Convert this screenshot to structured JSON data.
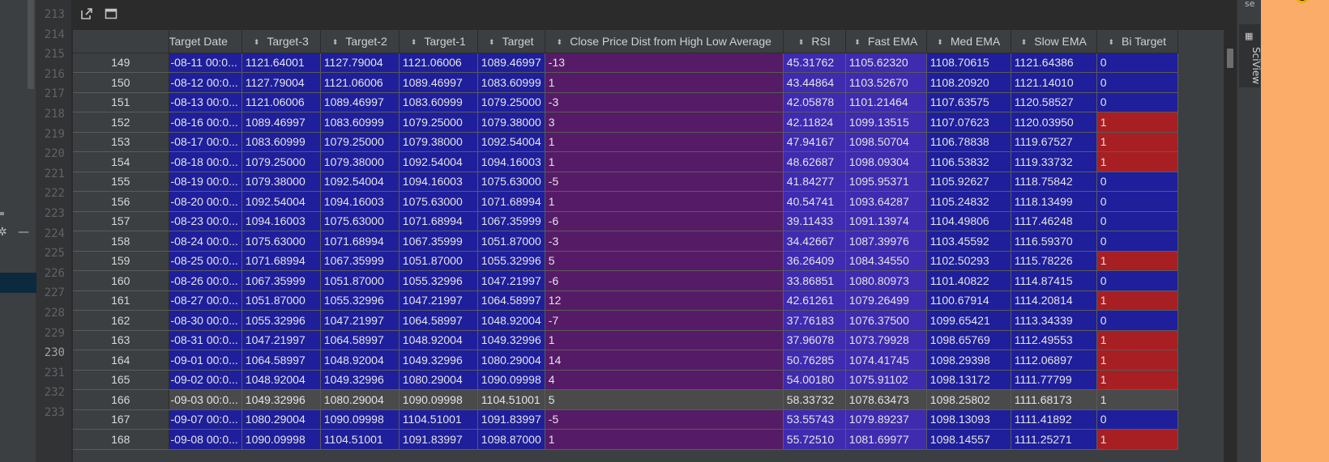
{
  "line_numbers": [
    "213",
    "214",
    "215",
    "216",
    "217",
    "218",
    "219",
    "220",
    "221",
    "222",
    "223",
    "224",
    "225",
    "226",
    "227",
    "228",
    "229",
    "230",
    "231",
    "232",
    "233"
  ],
  "current_line": "230",
  "toolbar": {
    "open_icon": "open-in-window-icon",
    "window_icon": "window-icon"
  },
  "right_strip": {
    "top_text": "se",
    "tool_label": "SciView",
    "tool_icon": "table-grid-icon"
  },
  "left_panel": {
    "icons": [
      "gear-icon",
      "minus-icon"
    ]
  },
  "colors": {
    "blue": "#1f1f9b",
    "purple": "#561b67",
    "lavender": "#3e2bb0",
    "red": "#a81f23"
  },
  "table": {
    "columns": [
      "Target Date",
      "Target-3",
      "Target-2",
      "Target-1",
      "Target",
      "Close Price Dist from High Low Average",
      "RSI",
      "Fast EMA",
      "Med EMA",
      "Slow EMA",
      "Bi Target"
    ],
    "rows": [
      {
        "idx": "149",
        "date": "-08-11 00:0...",
        "t3": "1121.64001",
        "t2": "1127.79004",
        "t1": "1121.06006",
        "t": "1089.46997",
        "dist": "-13",
        "rsi": "45.31762",
        "fast": "1105.62320",
        "med": "1108.70615",
        "slow": "1121.64386",
        "bi": "0"
      },
      {
        "idx": "150",
        "date": "-08-12 00:0...",
        "t3": "1127.79004",
        "t2": "1121.06006",
        "t1": "1089.46997",
        "t": "1083.60999",
        "dist": "1",
        "rsi": "43.44864",
        "fast": "1103.52670",
        "med": "1108.20920",
        "slow": "1121.14010",
        "bi": "0"
      },
      {
        "idx": "151",
        "date": "-08-13 00:0...",
        "t3": "1121.06006",
        "t2": "1089.46997",
        "t1": "1083.60999",
        "t": "1079.25000",
        "dist": "-3",
        "rsi": "42.05878",
        "fast": "1101.21464",
        "med": "1107.63575",
        "slow": "1120.58527",
        "bi": "0"
      },
      {
        "idx": "152",
        "date": "-08-16 00:0...",
        "t3": "1089.46997",
        "t2": "1083.60999",
        "t1": "1079.25000",
        "t": "1079.38000",
        "dist": "3",
        "rsi": "42.11824",
        "fast": "1099.13515",
        "med": "1107.07623",
        "slow": "1120.03950",
        "bi": "1"
      },
      {
        "idx": "153",
        "date": "-08-17 00:0...",
        "t3": "1083.60999",
        "t2": "1079.25000",
        "t1": "1079.38000",
        "t": "1092.54004",
        "dist": "1",
        "rsi": "47.94167",
        "fast": "1098.50704",
        "med": "1106.78838",
        "slow": "1119.67527",
        "bi": "1"
      },
      {
        "idx": "154",
        "date": "-08-18 00:0...",
        "t3": "1079.25000",
        "t2": "1079.38000",
        "t1": "1092.54004",
        "t": "1094.16003",
        "dist": "1",
        "rsi": "48.62687",
        "fast": "1098.09304",
        "med": "1106.53832",
        "slow": "1119.33732",
        "bi": "1"
      },
      {
        "idx": "155",
        "date": "-08-19 00:0...",
        "t3": "1079.38000",
        "t2": "1092.54004",
        "t1": "1094.16003",
        "t": "1075.63000",
        "dist": "-5",
        "rsi": "41.84277",
        "fast": "1095.95371",
        "med": "1105.92627",
        "slow": "1118.75842",
        "bi": "0"
      },
      {
        "idx": "156",
        "date": "-08-20 00:0...",
        "t3": "1092.54004",
        "t2": "1094.16003",
        "t1": "1075.63000",
        "t": "1071.68994",
        "dist": "1",
        "rsi": "40.54741",
        "fast": "1093.64287",
        "med": "1105.24832",
        "slow": "1118.13499",
        "bi": "0"
      },
      {
        "idx": "157",
        "date": "-08-23 00:0...",
        "t3": "1094.16003",
        "t2": "1075.63000",
        "t1": "1071.68994",
        "t": "1067.35999",
        "dist": "-6",
        "rsi": "39.11433",
        "fast": "1091.13974",
        "med": "1104.49806",
        "slow": "1117.46248",
        "bi": "0"
      },
      {
        "idx": "158",
        "date": "-08-24 00:0...",
        "t3": "1075.63000",
        "t2": "1071.68994",
        "t1": "1067.35999",
        "t": "1051.87000",
        "dist": "-3",
        "rsi": "34.42667",
        "fast": "1087.39976",
        "med": "1103.45592",
        "slow": "1116.59370",
        "bi": "0"
      },
      {
        "idx": "159",
        "date": "-08-25 00:0...",
        "t3": "1071.68994",
        "t2": "1067.35999",
        "t1": "1051.87000",
        "t": "1055.32996",
        "dist": "5",
        "rsi": "36.26409",
        "fast": "1084.34550",
        "med": "1102.50293",
        "slow": "1115.78226",
        "bi": "1"
      },
      {
        "idx": "160",
        "date": "-08-26 00:0...",
        "t3": "1067.35999",
        "t2": "1051.87000",
        "t1": "1055.32996",
        "t": "1047.21997",
        "dist": "-6",
        "rsi": "33.86851",
        "fast": "1080.80973",
        "med": "1101.40822",
        "slow": "1114.87415",
        "bi": "0"
      },
      {
        "idx": "161",
        "date": "-08-27 00:0...",
        "t3": "1051.87000",
        "t2": "1055.32996",
        "t1": "1047.21997",
        "t": "1064.58997",
        "dist": "12",
        "rsi": "42.61261",
        "fast": "1079.26499",
        "med": "1100.67914",
        "slow": "1114.20814",
        "bi": "1"
      },
      {
        "idx": "162",
        "date": "-08-30 00:0...",
        "t3": "1055.32996",
        "t2": "1047.21997",
        "t1": "1064.58997",
        "t": "1048.92004",
        "dist": "-7",
        "rsi": "37.76183",
        "fast": "1076.37500",
        "med": "1099.65421",
        "slow": "1113.34339",
        "bi": "0"
      },
      {
        "idx": "163",
        "date": "-08-31 00:0...",
        "t3": "1047.21997",
        "t2": "1064.58997",
        "t1": "1048.92004",
        "t": "1049.32996",
        "dist": "1",
        "rsi": "37.96078",
        "fast": "1073.79928",
        "med": "1098.65769",
        "slow": "1112.49553",
        "bi": "1"
      },
      {
        "idx": "164",
        "date": "-09-01 00:0...",
        "t3": "1064.58997",
        "t2": "1048.92004",
        "t1": "1049.32996",
        "t": "1080.29004",
        "dist": "14",
        "rsi": "50.76285",
        "fast": "1074.41745",
        "med": "1098.29398",
        "slow": "1112.06897",
        "bi": "1"
      },
      {
        "idx": "165",
        "date": "-09-02 00:0...",
        "t3": "1048.92004",
        "t2": "1049.32996",
        "t1": "1080.29004",
        "t": "1090.09998",
        "dist": "4",
        "rsi": "54.00180",
        "fast": "1075.91102",
        "med": "1098.13172",
        "slow": "1111.77799",
        "bi": "1"
      },
      {
        "idx": "166",
        "date": "-09-03 00:0...",
        "t3": "1049.32996",
        "t2": "1080.29004",
        "t1": "1090.09998",
        "t": "1104.51001",
        "dist": "5",
        "rsi": "58.33732",
        "fast": "1078.63473",
        "med": "1098.25802",
        "slow": "1111.68173",
        "bi": "1",
        "dim": true
      },
      {
        "idx": "167",
        "date": "-09-07 00:0...",
        "t3": "1080.29004",
        "t2": "1090.09998",
        "t1": "1104.51001",
        "t": "1091.83997",
        "dist": "-5",
        "rsi": "53.55743",
        "fast": "1079.89237",
        "med": "1098.13093",
        "slow": "1111.41892",
        "bi": "0"
      },
      {
        "idx": "168",
        "date": "-09-08 00:0...",
        "t3": "1090.09998",
        "t2": "1104.51001",
        "t1": "1091.83997",
        "t": "1098.87000",
        "dist": "1",
        "rsi": "55.72510",
        "fast": "1081.69977",
        "med": "1098.14557",
        "slow": "1111.25271",
        "bi": "1"
      }
    ]
  }
}
